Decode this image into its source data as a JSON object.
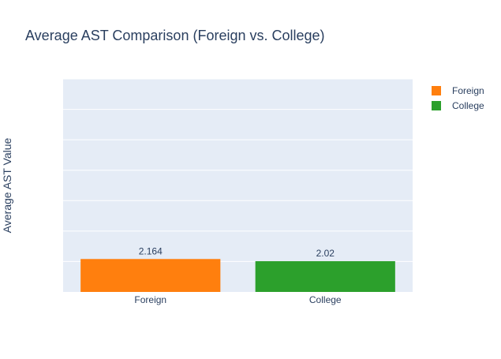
{
  "chart_data": {
    "type": "bar",
    "title": "Average AST Comparison (Foreign vs. College)",
    "ylabel": "Average AST Value",
    "xlabel": "",
    "categories": [
      "Foreign",
      "College"
    ],
    "values": [
      2.164,
      2.02
    ],
    "value_labels": [
      "2.164",
      "2.02"
    ],
    "colors": [
      "#ff7f0e",
      "#2ca02c"
    ],
    "ylim": [
      0,
      14
    ],
    "grid_step": 2,
    "y_tick_labels_visible": false,
    "grid": true,
    "legend": {
      "placement": "top-right",
      "entries": [
        {
          "name": "Foreign",
          "color": "#ff7f0e"
        },
        {
          "name": "College",
          "color": "#2ca02c"
        }
      ]
    },
    "plot_background": "#e5ecf6",
    "text_color": "#2a3f5f"
  }
}
